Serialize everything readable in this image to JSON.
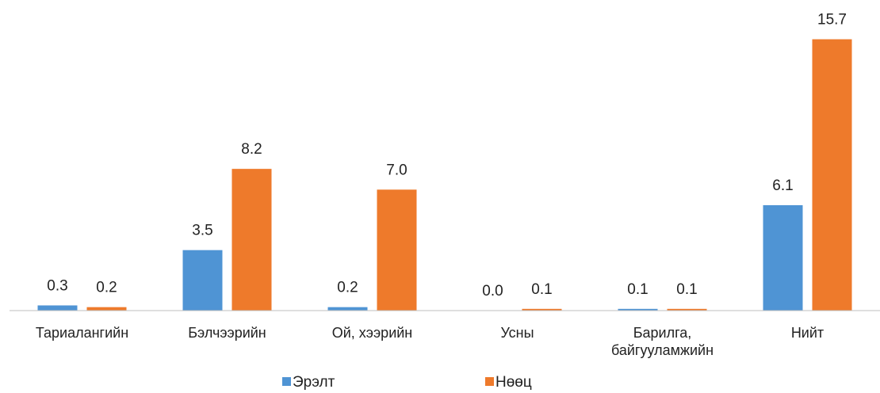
{
  "chart_data": {
    "type": "bar",
    "categories": [
      "Тариалангийн",
      "Бэлчээрийн",
      "Ой, хээрийн",
      "Усны",
      "Барилга, байгууламжийн",
      "Нийт"
    ],
    "series": [
      {
        "name": "Эрэлт",
        "color": "#4f94d4",
        "values": [
          0.3,
          3.5,
          0.2,
          0.0,
          0.1,
          6.1
        ],
        "value_labels": [
          "0.3",
          "3.5",
          "0.2",
          "0.0",
          "0.1",
          "6.1"
        ]
      },
      {
        "name": "Нөөц",
        "color": "#ee7a2b",
        "values": [
          0.2,
          8.2,
          7.0,
          0.1,
          0.1,
          15.7
        ],
        "value_labels": [
          "0.2",
          "8.2",
          "7.0",
          "0.1",
          "0.1",
          "15.7"
        ]
      }
    ],
    "ylim": [
      0,
      16
    ],
    "legend": "bottom"
  }
}
